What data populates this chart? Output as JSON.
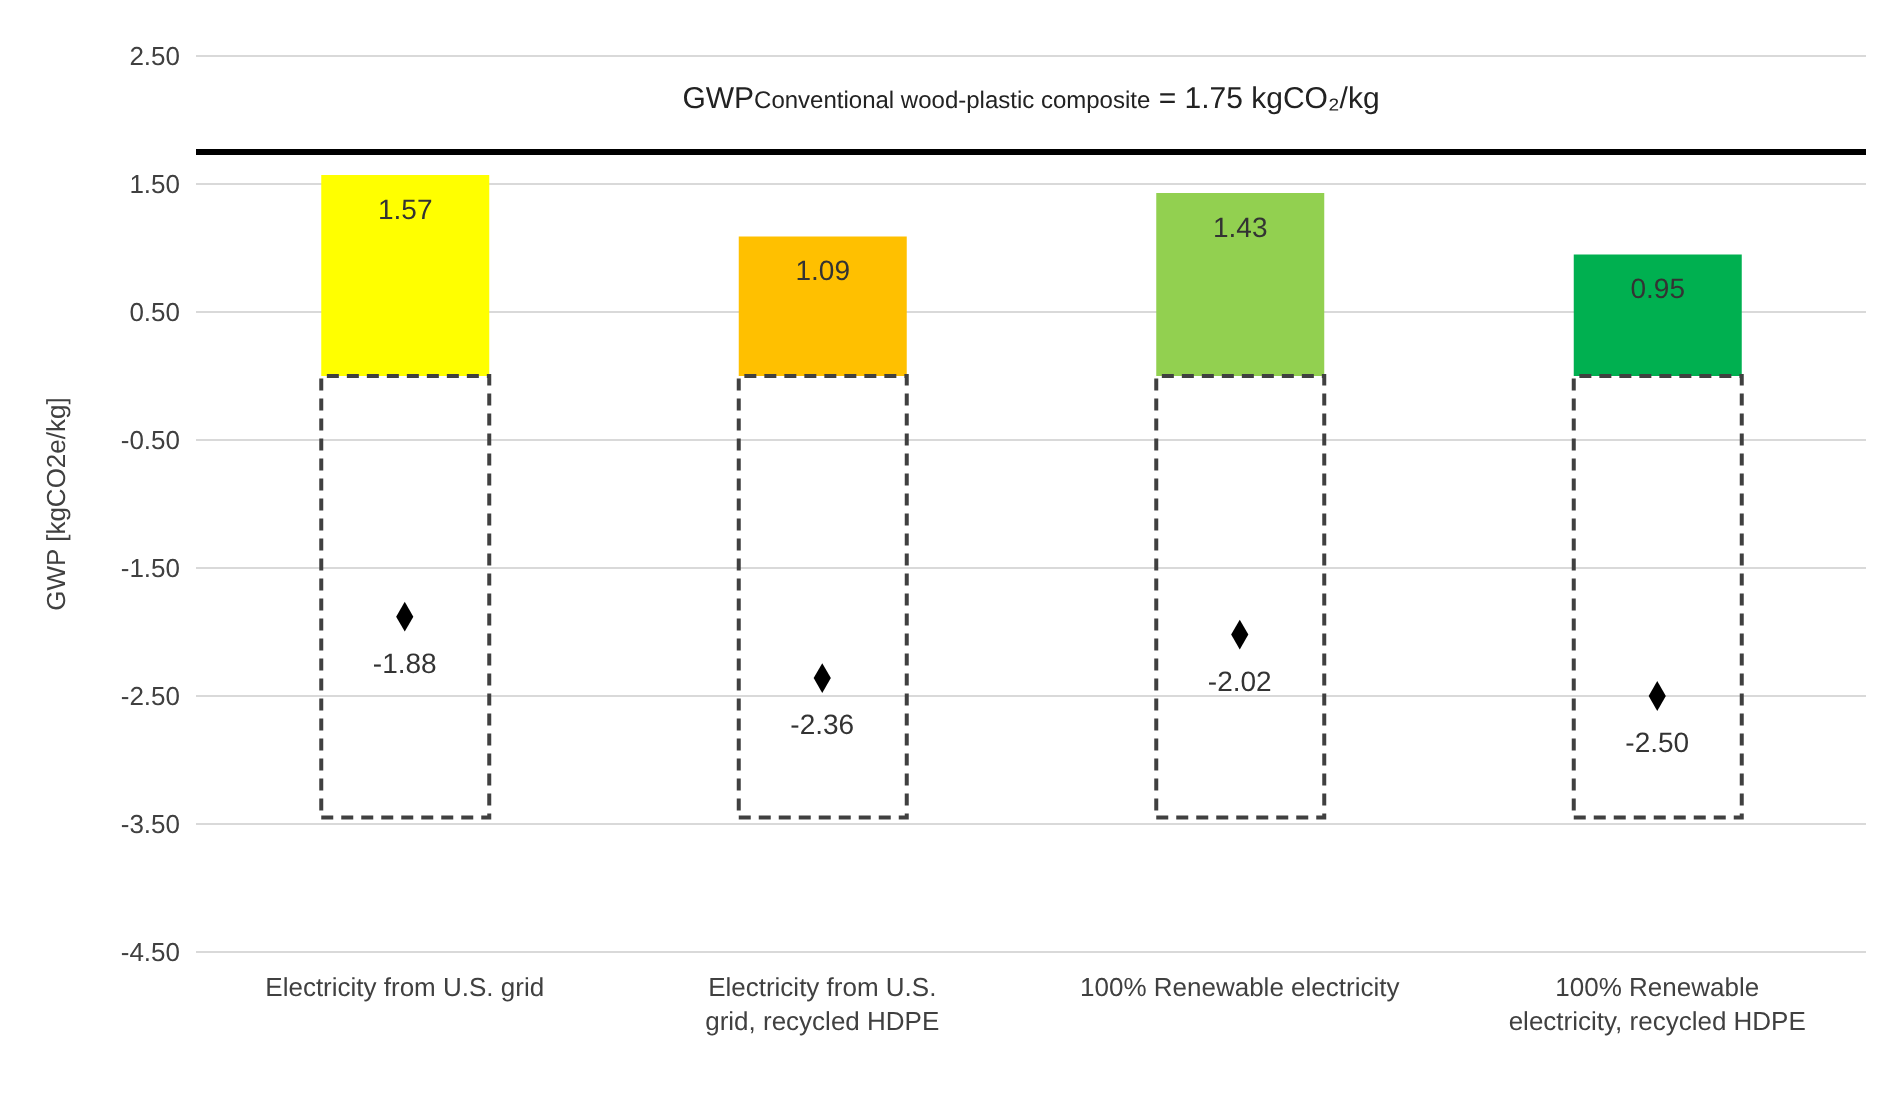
{
  "chart_data": {
    "type": "bar",
    "ylabel": "GWP [kgCO2e/kg]",
    "categories": [
      "Electricity from U.S. grid",
      "Electricity from U.S. grid, recycled HDPE",
      "100% Renewable electricity",
      "100% Renewable electricity, recycled HDPE"
    ],
    "stacked": true,
    "grid": "y",
    "ylim": [
      -4.5,
      2.5
    ],
    "yticks": [
      {
        "value": -4.5,
        "label": "-4.50"
      },
      {
        "value": -3.5,
        "label": "-3.50"
      },
      {
        "value": -2.5,
        "label": "-2.50"
      },
      {
        "value": -1.5,
        "label": "-1.50"
      },
      {
        "value": -0.5,
        "label": "-0.50"
      },
      {
        "value": 0.5,
        "label": "0.50"
      },
      {
        "value": 1.5,
        "label": "1.50"
      },
      {
        "value": 2.5,
        "label": "2.50"
      }
    ],
    "series": [
      {
        "colors": [
          "#ffff00",
          "#ffc000",
          "#92d050",
          "#00b050"
        ],
        "values": [
          1.57,
          1.09,
          1.43,
          0.95
        ],
        "value_labels": [
          "1.57",
          "1.09",
          "1.43",
          "0.95"
        ]
      },
      {
        "color": "#404040",
        "line_style": "dashed",
        "values": [
          -3.45,
          -3.45,
          -3.45,
          -3.45
        ]
      },
      {
        "type": "scatter",
        "color": "#000000",
        "marker": "diamond",
        "x": [
          "Electricity from U.S. grid",
          "Electricity from U.S. grid, recycled HDPE",
          "100% Renewable electricity",
          "100% Renewable electricity, recycled HDPE"
        ],
        "values": [
          -1.88,
          -2.36,
          -2.02,
          -2.5
        ],
        "value_labels": [
          "-1.88",
          "-2.36",
          "-2.02",
          "-2.50"
        ]
      }
    ],
    "ref_lines": [
      {
        "axis": "y",
        "value": 1.75,
        "label": "GWP$_{Conventional wood-plastic composite}$ = 1.75 kgCO₂/kg",
        "color": "#000000"
      }
    ]
  }
}
